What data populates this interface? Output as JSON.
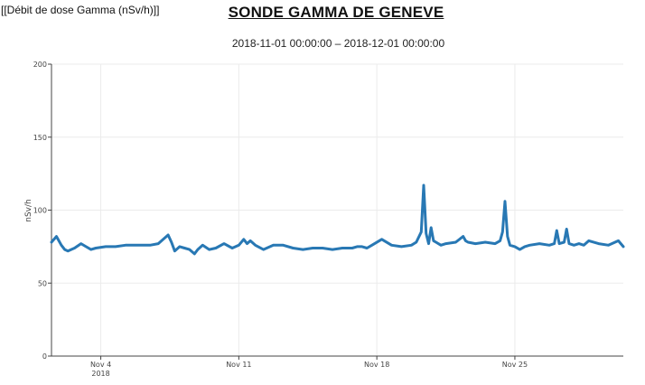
{
  "header": {
    "top_label": "[[Débit de dose Gamma (nSv/h)]]",
    "title": "SONDE GAMMA DE GENEVE",
    "subtitle": "2018-11-01 00:00:00 – 2018-12-01 00:00:00"
  },
  "colors": {
    "series": "#2878b4",
    "grid": "#ebebeb",
    "axis": "#444444"
  },
  "chart_data": {
    "type": "line",
    "ylabel": "nSv/h",
    "xlim": [
      "2018-11-01 12:00",
      "2018-11-30 12:00"
    ],
    "ylim": [
      0,
      200
    ],
    "y_ticks": [
      0,
      50,
      100,
      150,
      200
    ],
    "x_ticks": [
      {
        "date": "2018-11-04",
        "label": "Nov 4",
        "sublabel": "2018"
      },
      {
        "date": "2018-11-11",
        "label": "Nov 11",
        "sublabel": ""
      },
      {
        "date": "2018-11-18",
        "label": "Nov 18",
        "sublabel": ""
      },
      {
        "date": "2018-11-25",
        "label": "Nov 25",
        "sublabel": ""
      }
    ],
    "grid": true,
    "series": [
      {
        "x": [
          "2018-11-01 12:00",
          "2018-11-01 18:00",
          "2018-11-02 00:00",
          "2018-11-02 04:00",
          "2018-11-02 08:00",
          "2018-11-02 12:00",
          "2018-11-02 16:00",
          "2018-11-03 00:00",
          "2018-11-03 06:00",
          "2018-11-03 12:00",
          "2018-11-03 18:00",
          "2018-11-04 06:00",
          "2018-11-04 18:00",
          "2018-11-05 06:00",
          "2018-11-05 18:00",
          "2018-11-06 12:00",
          "2018-11-06 22:00",
          "2018-11-07 04:00",
          "2018-11-07 10:00",
          "2018-11-07 14:00",
          "2018-11-07 18:00",
          "2018-11-08 00:00",
          "2018-11-08 06:00",
          "2018-11-08 12:00",
          "2018-11-08 18:00",
          "2018-11-08 22:00",
          "2018-11-09 04:00",
          "2018-11-09 12:00",
          "2018-11-09 20:00",
          "2018-11-10 06:00",
          "2018-11-10 16:00",
          "2018-11-11 00:00",
          "2018-11-11 06:00",
          "2018-11-11 10:00",
          "2018-11-11 14:00",
          "2018-11-11 20:00",
          "2018-11-12 06:00",
          "2018-11-12 18:00",
          "2018-11-13 06:00",
          "2018-11-13 18:00",
          "2018-11-14 06:00",
          "2018-11-14 18:00",
          "2018-11-15 06:00",
          "2018-11-15 18:00",
          "2018-11-16 06:00",
          "2018-11-16 18:00",
          "2018-11-17 00:00",
          "2018-11-17 06:00",
          "2018-11-17 12:00",
          "2018-11-17 18:00",
          "2018-11-18 06:00",
          "2018-11-18 18:00",
          "2018-11-19 06:00",
          "2018-11-19 18:00",
          "2018-11-20 00:00",
          "2018-11-20 06:00",
          "2018-11-20 09:00",
          "2018-11-20 12:00",
          "2018-11-20 15:00",
          "2018-11-20 18:00",
          "2018-11-20 21:00",
          "2018-11-21 00:00",
          "2018-11-21 06:00",
          "2018-11-21 12:00",
          "2018-11-22 00:00",
          "2018-11-22 09:00",
          "2018-11-22 12:00",
          "2018-11-22 15:00",
          "2018-11-23 00:00",
          "2018-11-23 12:00",
          "2018-11-24 00:00",
          "2018-11-24 06:00",
          "2018-11-24 09:00",
          "2018-11-24 12:00",
          "2018-11-24 15:00",
          "2018-11-24 18:00",
          "2018-11-25 00:00",
          "2018-11-25 06:00",
          "2018-11-25 12:00",
          "2018-11-25 18:00",
          "2018-11-26 06:00",
          "2018-11-26 18:00",
          "2018-11-27 00:00",
          "2018-11-27 03:00",
          "2018-11-27 06:00",
          "2018-11-27 12:00",
          "2018-11-27 15:00",
          "2018-11-27 18:00",
          "2018-11-28 00:00",
          "2018-11-28 06:00",
          "2018-11-28 12:00",
          "2018-11-28 18:00",
          "2018-11-29 06:00",
          "2018-11-29 18:00",
          "2018-11-30 06:00",
          "2018-11-30 12:00"
        ],
        "y": [
          78,
          82,
          76,
          73,
          72,
          73,
          74,
          77,
          75,
          73,
          74,
          75,
          75,
          76,
          76,
          76,
          77,
          80,
          83,
          78,
          72,
          75,
          74,
          73,
          70,
          73,
          76,
          73,
          74,
          77,
          74,
          76,
          80,
          77,
          79,
          76,
          73,
          76,
          76,
          74,
          73,
          74,
          74,
          73,
          74,
          74,
          75,
          75,
          74,
          76,
          80,
          76,
          75,
          76,
          78,
          85,
          117,
          84,
          77,
          88,
          79,
          78,
          76,
          77,
          78,
          82,
          79,
          78,
          77,
          78,
          77,
          79,
          85,
          106,
          82,
          76,
          75,
          73,
          75,
          76,
          77,
          76,
          77,
          86,
          77,
          78,
          87,
          77,
          76,
          77,
          76,
          79,
          77,
          76,
          79,
          75
        ]
      }
    ]
  }
}
